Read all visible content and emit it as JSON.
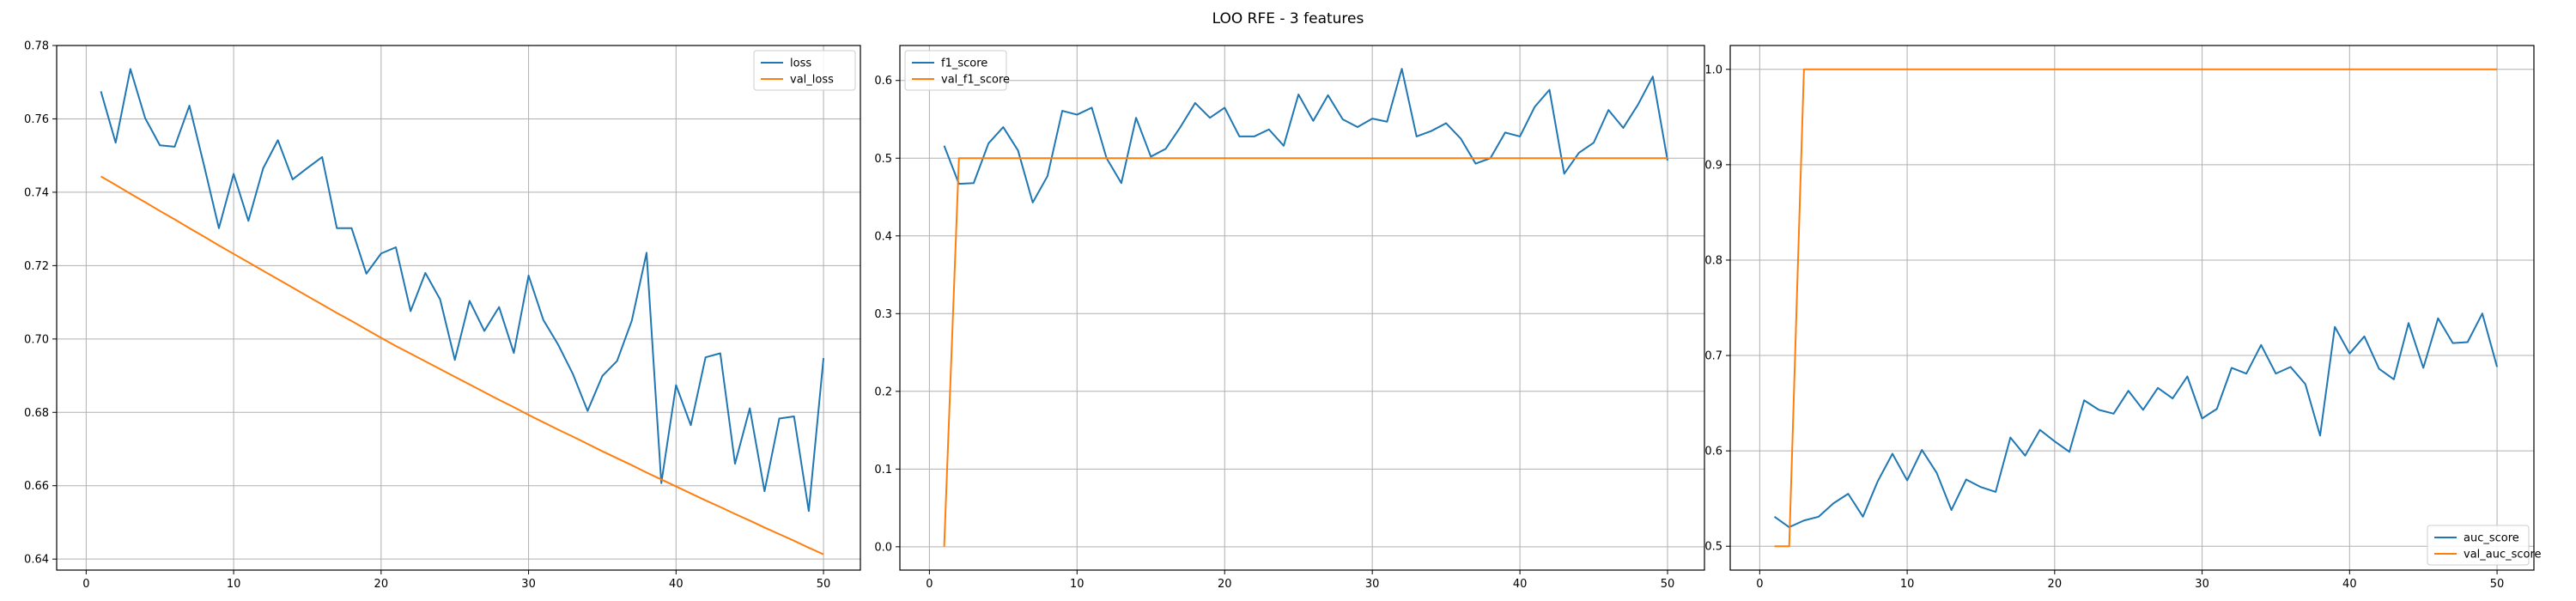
{
  "figure": {
    "suptitle": "LOO RFE - 3 features"
  },
  "colors": {
    "blue": "#1f77b4",
    "orange": "#ff7f0e",
    "grid": "#b0b0b0",
    "axis": "#000000",
    "legend_border": "#cccccc"
  },
  "chart_data": [
    {
      "type": "line",
      "grid": true,
      "legend_loc": "top-right",
      "xlim": [
        -2,
        52.5
      ],
      "ylim": [
        0.637,
        0.78
      ],
      "xticks": [
        0,
        10,
        20,
        30,
        40,
        50
      ],
      "yticks": [
        0.64,
        0.66,
        0.68,
        0.7,
        0.72,
        0.74,
        0.76,
        0.78
      ],
      "yticklabels": [
        "0.64",
        "0.66",
        "0.68",
        "0.70",
        "0.72",
        "0.74",
        "0.76",
        "0.78"
      ],
      "x": [
        1,
        2,
        3,
        4,
        5,
        6,
        7,
        8,
        9,
        10,
        11,
        12,
        13,
        14,
        15,
        16,
        17,
        18,
        19,
        20,
        21,
        22,
        23,
        24,
        25,
        26,
        27,
        28,
        29,
        30,
        31,
        32,
        33,
        34,
        35,
        36,
        37,
        38,
        39,
        40,
        41,
        42,
        43,
        44,
        45,
        46,
        47,
        48,
        49,
        50
      ],
      "series": [
        {
          "name": "loss",
          "color": "#1f77b4",
          "values": [
            0.7675,
            0.7535,
            0.7736,
            0.7602,
            0.7528,
            0.7524,
            0.7636,
            0.7472,
            0.7302,
            0.745,
            0.7322,
            0.7465,
            0.7542,
            0.7435,
            0.7466,
            0.7496,
            0.7302,
            0.7302,
            0.7178,
            0.7233,
            0.725,
            0.7076,
            0.718,
            0.7108,
            0.6943,
            0.7104,
            0.7022,
            0.7087,
            0.6962,
            0.7173,
            0.7052,
            0.6985,
            0.6905,
            0.6804,
            0.6899,
            0.694,
            0.705,
            0.7235,
            0.6607,
            0.6874,
            0.6765,
            0.695,
            0.6961,
            0.666,
            0.6811,
            0.6585,
            0.6783,
            0.6789,
            0.6531,
            0.6948
          ]
        },
        {
          "name": "val_loss",
          "color": "#ff7f0e",
          "values": [
            0.7443,
            0.742,
            0.7396,
            0.7373,
            0.7349,
            0.7326,
            0.7302,
            0.7279,
            0.7255,
            0.7232,
            0.7209,
            0.7186,
            0.7163,
            0.714,
            0.7117,
            0.7094,
            0.7071,
            0.7049,
            0.7026,
            0.7003,
            0.6981,
            0.696,
            0.6939,
            0.6918,
            0.6897,
            0.6876,
            0.6855,
            0.6834,
            0.6814,
            0.6793,
            0.6773,
            0.6753,
            0.6734,
            0.6714,
            0.6694,
            0.6675,
            0.6656,
            0.6636,
            0.6617,
            0.6598,
            0.6579,
            0.656,
            0.6542,
            0.6523,
            0.6505,
            0.6486,
            0.6468,
            0.645,
            0.6431,
            0.6413
          ]
        }
      ]
    },
    {
      "type": "line",
      "grid": true,
      "legend_loc": "top-left",
      "xlim": [
        -2,
        52.5
      ],
      "ylim": [
        -0.03,
        0.645
      ],
      "xticks": [
        0,
        10,
        20,
        30,
        40,
        50
      ],
      "yticks": [
        0.0,
        0.1,
        0.2,
        0.3,
        0.4,
        0.5,
        0.6
      ],
      "yticklabels": [
        "0.0",
        "0.1",
        "0.2",
        "0.3",
        "0.4",
        "0.5",
        "0.6"
      ],
      "x": [
        1,
        2,
        3,
        4,
        5,
        6,
        7,
        8,
        9,
        10,
        11,
        12,
        13,
        14,
        15,
        16,
        17,
        18,
        19,
        20,
        21,
        22,
        23,
        24,
        25,
        26,
        27,
        28,
        29,
        30,
        31,
        32,
        33,
        34,
        35,
        36,
        37,
        38,
        39,
        40,
        41,
        42,
        43,
        44,
        45,
        46,
        47,
        48,
        49,
        50
      ],
      "series": [
        {
          "name": "f1_score",
          "color": "#1f77b4",
          "values": [
            0.516,
            0.467,
            0.468,
            0.519,
            0.54,
            0.51,
            0.443,
            0.477,
            0.561,
            0.556,
            0.565,
            0.5,
            0.468,
            0.552,
            0.502,
            0.512,
            0.54,
            0.571,
            0.552,
            0.565,
            0.528,
            0.528,
            0.537,
            0.516,
            0.582,
            0.548,
            0.581,
            0.55,
            0.54,
            0.551,
            0.547,
            0.615,
            0.528,
            0.535,
            0.545,
            0.525,
            0.493,
            0.5,
            0.533,
            0.528,
            0.566,
            0.588,
            0.48,
            0.507,
            0.52,
            0.562,
            0.539,
            0.569,
            0.605,
            0.497
          ]
        },
        {
          "name": "val_f1_score",
          "color": "#ff7f0e",
          "values": [
            0.0,
            0.5,
            0.5,
            0.5,
            0.5,
            0.5,
            0.5,
            0.5,
            0.5,
            0.5,
            0.5,
            0.5,
            0.5,
            0.5,
            0.5,
            0.5,
            0.5,
            0.5,
            0.5,
            0.5,
            0.5,
            0.5,
            0.5,
            0.5,
            0.5,
            0.5,
            0.5,
            0.5,
            0.5,
            0.5,
            0.5,
            0.5,
            0.5,
            0.5,
            0.5,
            0.5,
            0.5,
            0.5,
            0.5,
            0.5,
            0.5,
            0.5,
            0.5,
            0.5,
            0.5,
            0.5,
            0.5,
            0.5,
            0.5,
            0.5
          ]
        }
      ]
    },
    {
      "type": "line",
      "grid": true,
      "legend_loc": "bottom-right",
      "xlim": [
        -2,
        52.5
      ],
      "ylim": [
        0.475,
        1.025
      ],
      "xticks": [
        0,
        10,
        20,
        30,
        40,
        50
      ],
      "yticks": [
        0.5,
        0.6,
        0.7,
        0.8,
        0.9,
        1.0
      ],
      "yticklabels": [
        "0.5",
        "0.6",
        "0.7",
        "0.8",
        "0.9",
        "1.0"
      ],
      "x": [
        1,
        2,
        3,
        4,
        5,
        6,
        7,
        8,
        9,
        10,
        11,
        12,
        13,
        14,
        15,
        16,
        17,
        18,
        19,
        20,
        21,
        22,
        23,
        24,
        25,
        26,
        27,
        28,
        29,
        30,
        31,
        32,
        33,
        34,
        35,
        36,
        37,
        38,
        39,
        40,
        41,
        42,
        43,
        44,
        45,
        46,
        47,
        48,
        49,
        50
      ],
      "series": [
        {
          "name": "auc_score",
          "color": "#1f77b4",
          "values": [
            0.531,
            0.52,
            0.527,
            0.531,
            0.545,
            0.555,
            0.531,
            0.568,
            0.597,
            0.569,
            0.601,
            0.577,
            0.538,
            0.57,
            0.562,
            0.557,
            0.614,
            0.595,
            0.622,
            0.61,
            0.599,
            0.653,
            0.643,
            0.639,
            0.663,
            0.643,
            0.666,
            0.655,
            0.678,
            0.634,
            0.644,
            0.687,
            0.681,
            0.711,
            0.681,
            0.688,
            0.67,
            0.616,
            0.73,
            0.702,
            0.72,
            0.686,
            0.675,
            0.734,
            0.687,
            0.739,
            0.713,
            0.714,
            0.744,
            0.688
          ]
        },
        {
          "name": "val_auc_score",
          "color": "#ff7f0e",
          "values": [
            0.5,
            0.5,
            1.0,
            1.0,
            1.0,
            1.0,
            1.0,
            1.0,
            1.0,
            1.0,
            1.0,
            1.0,
            1.0,
            1.0,
            1.0,
            1.0,
            1.0,
            1.0,
            1.0,
            1.0,
            1.0,
            1.0,
            1.0,
            1.0,
            1.0,
            1.0,
            1.0,
            1.0,
            1.0,
            1.0,
            1.0,
            1.0,
            1.0,
            1.0,
            1.0,
            1.0,
            1.0,
            1.0,
            1.0,
            1.0,
            1.0,
            1.0,
            1.0,
            1.0,
            1.0,
            1.0,
            1.0,
            1.0,
            1.0,
            1.0
          ]
        }
      ]
    }
  ]
}
